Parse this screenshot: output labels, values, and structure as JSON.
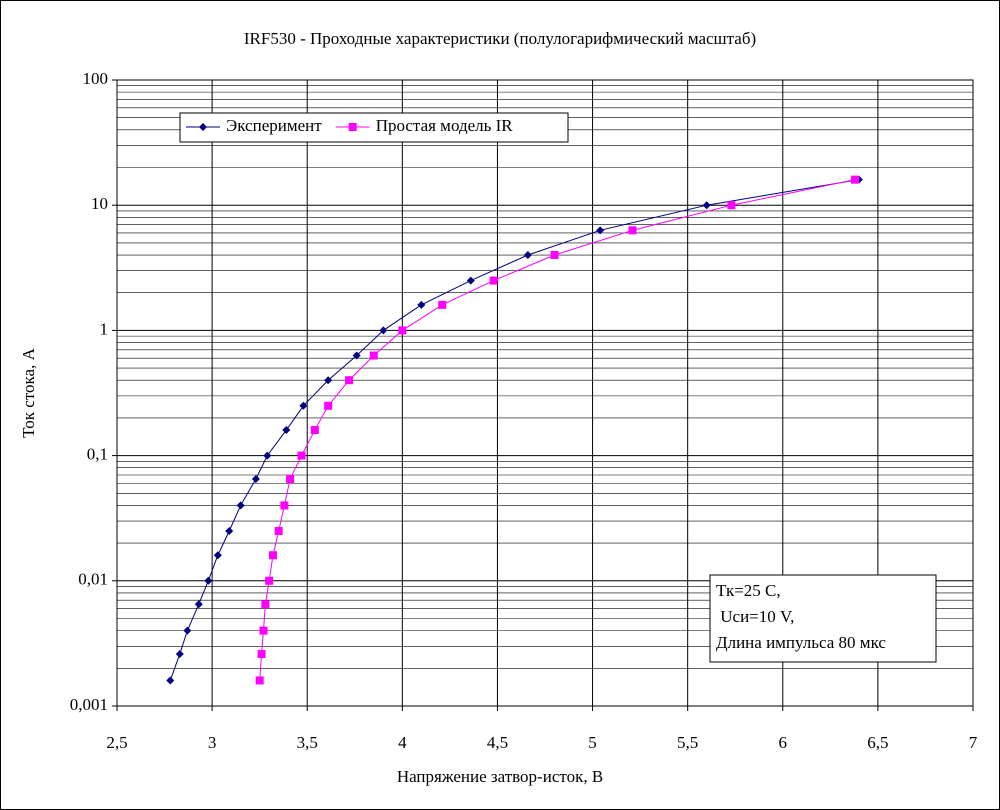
{
  "chart_data": {
    "type": "line",
    "title": "IRF530 - Проходные характеристики (полулогарифмический масштаб)",
    "x_label": "Напряжение затвор-исток, В",
    "y_label": "Ток стока, А",
    "y_log": true,
    "grid": true,
    "minor_grid": true,
    "legend_position": "upper left",
    "xlim": [
      2.5,
      7
    ],
    "ylim": [
      0.001,
      100
    ],
    "xticks": [
      {
        "value": 2.5,
        "label": "2,5"
      },
      3,
      {
        "value": 3.5,
        "label": "3,5"
      },
      4,
      {
        "value": 4.5,
        "label": "4,5"
      },
      5,
      {
        "value": 5.5,
        "label": "5,5"
      },
      6,
      {
        "value": 6.5,
        "label": "6,5"
      },
      7
    ],
    "yticks": [
      {
        "value": 0.001,
        "label": "0,001"
      },
      {
        "value": 0.01,
        "label": "0,01"
      },
      {
        "value": 0.1,
        "label": "0,1"
      },
      1,
      10,
      100
    ],
    "annotation": [
      "Тк=25 С,",
      " Uси=10 V,",
      "Длина импульса 80 мкс"
    ],
    "series": [
      {
        "name": "Эксперимент",
        "color": "#000080",
        "marker": "diamond",
        "x": [
          2.78,
          2.83,
          2.87,
          2.93,
          2.98,
          3.03,
          3.09,
          3.15,
          3.23,
          3.29,
          3.39,
          3.48,
          3.61,
          3.76,
          3.9,
          4.1,
          4.36,
          4.66,
          5.04,
          5.6,
          6.4
        ],
        "values": [
          0.0016,
          0.0026,
          0.004,
          0.0065,
          0.01,
          0.016,
          0.025,
          0.04,
          0.065,
          0.1,
          0.16,
          0.25,
          0.4,
          0.63,
          1,
          1.6,
          2.5,
          4,
          6.3,
          10,
          16
        ]
      },
      {
        "name": "Простая модель IR",
        "color": "#ff00ff",
        "marker": "square",
        "x": [
          3.25,
          3.26,
          3.27,
          3.28,
          3.3,
          3.32,
          3.35,
          3.38,
          3.41,
          3.47,
          3.54,
          3.61,
          3.72,
          3.85,
          4.0,
          4.21,
          4.48,
          4.8,
          5.21,
          5.73,
          6.38
        ],
        "values": [
          0.0016,
          0.0026,
          0.004,
          0.0065,
          0.01,
          0.016,
          0.025,
          0.04,
          0.065,
          0.1,
          0.16,
          0.25,
          0.4,
          0.63,
          1,
          1.6,
          2.5,
          4,
          6.3,
          10,
          16
        ]
      }
    ]
  }
}
